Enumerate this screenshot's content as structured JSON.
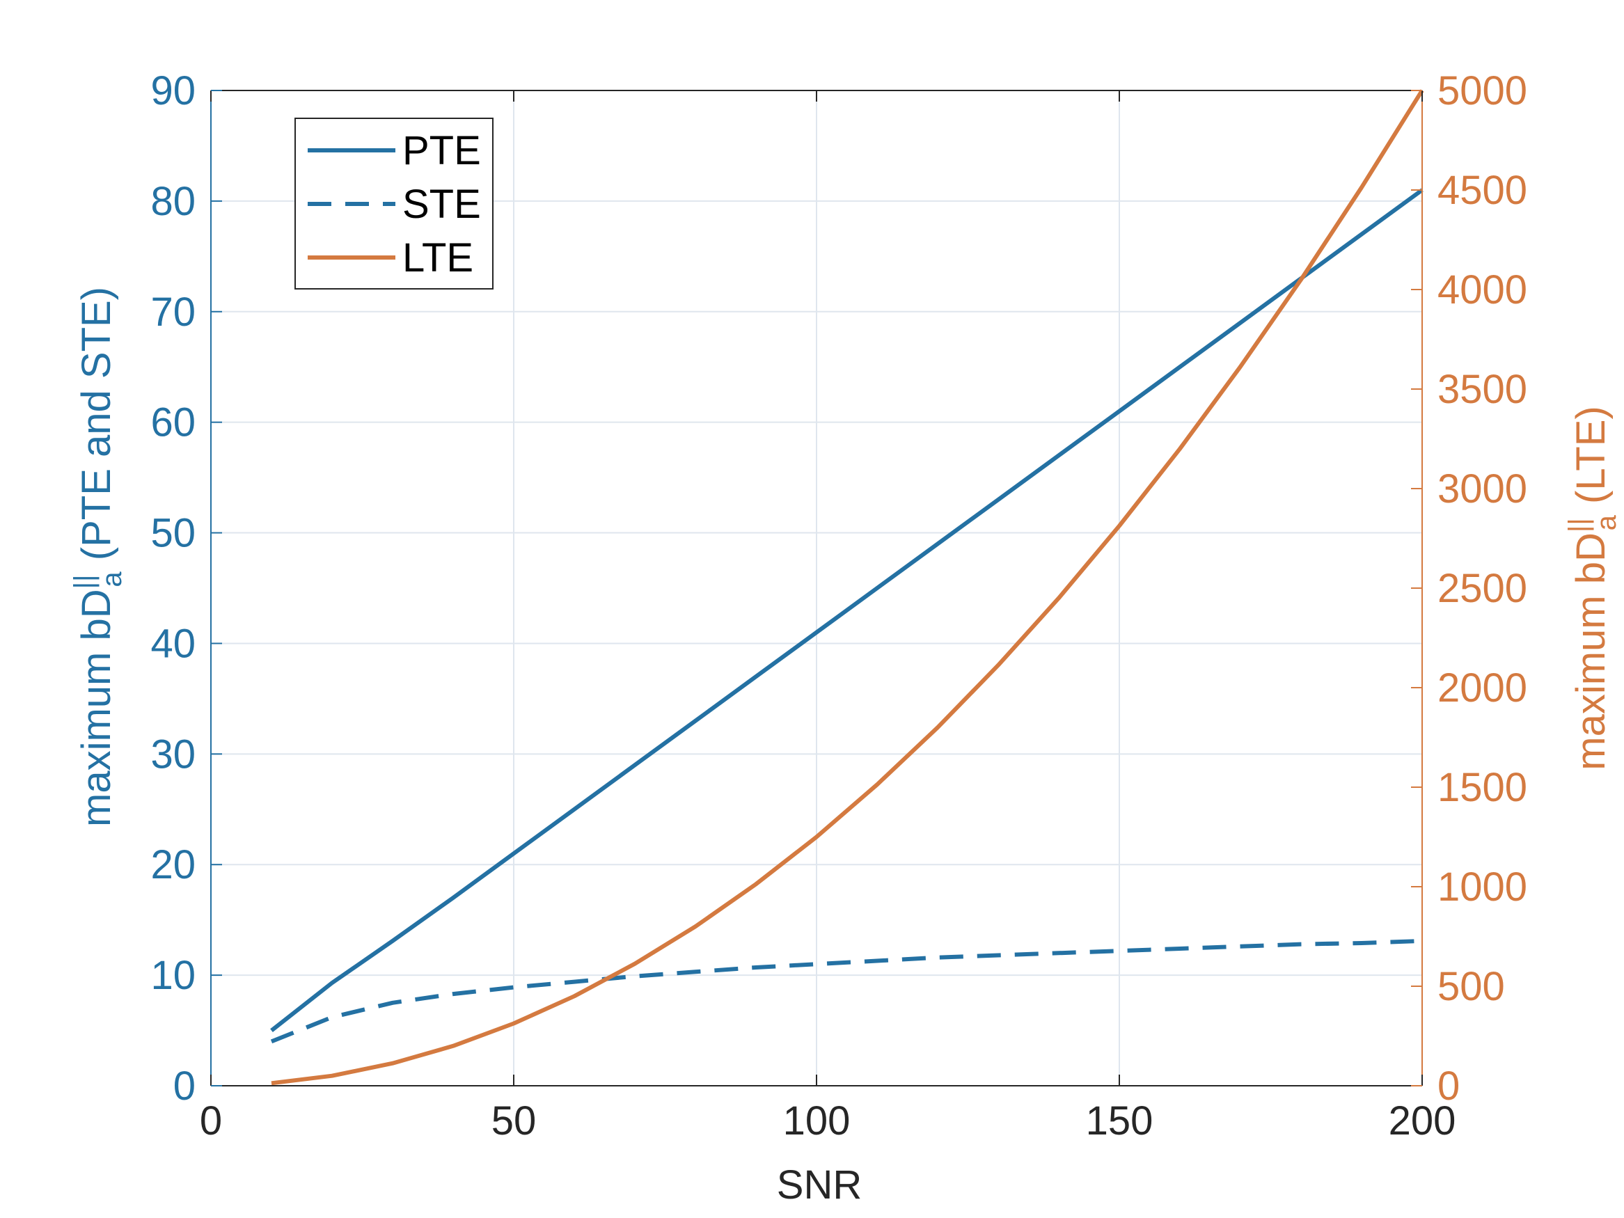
{
  "colors": {
    "left_axis": "#2471a3",
    "right_axis": "#d47a40",
    "grid": "#dfe6ee",
    "text_dark": "#262626",
    "legend_text": "#000000"
  },
  "chart_data": {
    "type": "line",
    "xlabel": "SNR",
    "ylabel_left": {
      "prefix": "maximum bD",
      "superscript": "||",
      "subscript": "a",
      "suffix": " (PTE and STE)"
    },
    "ylabel_right": {
      "prefix": "maximum bD",
      "superscript": "||",
      "subscript": "a",
      "suffix": " (LTE)"
    },
    "xlim": [
      0,
      200
    ],
    "ylim_left": [
      0,
      90
    ],
    "ylim_right": [
      0,
      5000
    ],
    "x_ticks": [
      "0",
      "50",
      "100",
      "150",
      "200"
    ],
    "y_ticks_left": [
      "0",
      "10",
      "20",
      "30",
      "40",
      "50",
      "60",
      "70",
      "80",
      "90"
    ],
    "y_ticks_right": [
      "0",
      "500",
      "1000",
      "1500",
      "2000",
      "2500",
      "3000",
      "3500",
      "4000",
      "4500",
      "5000"
    ],
    "grid": true,
    "legend_position": "top-left",
    "x": [
      10,
      20,
      30,
      40,
      50,
      60,
      70,
      80,
      90,
      100,
      110,
      120,
      130,
      140,
      150,
      160,
      170,
      180,
      190,
      200
    ],
    "series": [
      {
        "name": "PTE",
        "axis": "left",
        "style": "solid",
        "values": [
          5.0,
          9.3,
          13.1,
          17.0,
          21.0,
          25.0,
          29.0,
          33.0,
          37.0,
          41.0,
          45.0,
          49.0,
          53.0,
          57.0,
          61.0,
          65.0,
          69.0,
          73.0,
          77.0,
          81.0
        ]
      },
      {
        "name": "STE",
        "axis": "left",
        "style": "dashed",
        "values": [
          4.0,
          6.2,
          7.5,
          8.3,
          8.9,
          9.4,
          9.9,
          10.3,
          10.7,
          11.0,
          11.3,
          11.6,
          11.8,
          12.0,
          12.2,
          12.4,
          12.6,
          12.8,
          12.9,
          13.1
        ]
      },
      {
        "name": "LTE",
        "axis": "right",
        "style": "solid",
        "values": [
          13,
          50,
          113,
          200,
          313,
          450,
          613,
          800,
          1013,
          1250,
          1513,
          1800,
          2113,
          2450,
          2813,
          3200,
          3613,
          4050,
          4513,
          5000
        ]
      }
    ]
  }
}
